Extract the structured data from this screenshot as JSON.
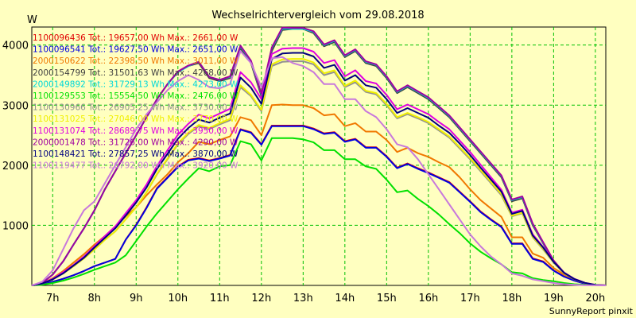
{
  "chart_data": {
    "type": "line",
    "title": "Wechselrichtervergleich vom 29.08.2018",
    "ylabel": "W",
    "xlabel": "",
    "footer": "SunnyReport pinxit",
    "ylim": [
      0,
      4300
    ],
    "xlim": [
      6.5,
      20.25
    ],
    "yticks": [
      1000,
      2000,
      3000,
      4000
    ],
    "xticks": [
      7,
      8,
      9,
      10,
      11,
      12,
      13,
      14,
      15,
      16,
      17,
      18,
      19,
      20
    ],
    "xtick_labels": [
      "7h",
      "8h",
      "9h",
      "10h",
      "11h",
      "12h",
      "13h",
      "14h",
      "15h",
      "16h",
      "17h",
      "18h",
      "19h",
      "20h"
    ],
    "grid": true,
    "legend_position": "top-left",
    "x": [
      6.5,
      6.75,
      7.0,
      7.25,
      7.5,
      7.75,
      8.0,
      8.25,
      8.5,
      8.75,
      9.0,
      9.25,
      9.5,
      9.75,
      10.0,
      10.25,
      10.5,
      10.75,
      11.0,
      11.25,
      11.5,
      11.75,
      12.0,
      12.25,
      12.5,
      12.75,
      13.0,
      13.25,
      13.5,
      13.75,
      14.0,
      14.25,
      14.5,
      14.75,
      15.0,
      15.25,
      15.5,
      15.75,
      16.0,
      16.25,
      16.5,
      16.75,
      17.0,
      17.25,
      17.5,
      17.75,
      18.0,
      18.25,
      18.5,
      18.75,
      19.0,
      19.25,
      19.5,
      19.75,
      20.0,
      20.25
    ],
    "series": [
      {
        "name": "1100096436 Tot.: 19657,00 Wh Max.: 2661,00 W",
        "color": "#e00000",
        "values": [
          0,
          20,
          60,
          110,
          170,
          240,
          320,
          380,
          440,
          760,
          1010,
          1300,
          1620,
          1800,
          1980,
          2090,
          2120,
          2080,
          2120,
          2170,
          2600,
          2550,
          2350,
          2660,
          2660,
          2660,
          2660,
          2610,
          2530,
          2550,
          2400,
          2440,
          2300,
          2300,
          2150,
          1960,
          2030,
          1950,
          1880,
          1800,
          1720,
          1560,
          1400,
          1230,
          1100,
          980,
          700,
          700,
          450,
          400,
          250,
          150,
          80,
          30,
          5,
          0
        ]
      },
      {
        "name": "1100096541 Tot.: 19627,50 Wh Max.: 2651,00 W",
        "color": "#0000e0",
        "values": [
          0,
          20,
          60,
          110,
          170,
          240,
          320,
          380,
          440,
          760,
          1000,
          1290,
          1610,
          1790,
          1970,
          2080,
          2110,
          2070,
          2110,
          2160,
          2590,
          2540,
          2340,
          2650,
          2650,
          2650,
          2650,
          2600,
          2520,
          2540,
          2390,
          2430,
          2290,
          2290,
          2140,
          1950,
          2020,
          1940,
          1870,
          1790,
          1710,
          1550,
          1390,
          1220,
          1090,
          970,
          690,
          690,
          440,
          390,
          245,
          145,
          78,
          28,
          5,
          0
        ]
      },
      {
        "name": "2000150622 Tot.: 22398,50 Wh Max.: 3011,00 W",
        "color": "#f07800",
        "values": [
          0,
          30,
          120,
          240,
          380,
          520,
          680,
          820,
          980,
          1150,
          1300,
          1500,
          1680,
          1850,
          2050,
          2200,
          2390,
          2350,
          2420,
          2480,
          2800,
          2750,
          2500,
          3000,
          3010,
          3000,
          3000,
          2950,
          2830,
          2850,
          2650,
          2700,
          2560,
          2560,
          2420,
          2220,
          2290,
          2200,
          2140,
          2050,
          1970,
          1800,
          1600,
          1420,
          1280,
          1140,
          800,
          800,
          530,
          460,
          290,
          180,
          100,
          40,
          8,
          0
        ]
      },
      {
        "name": "2000154799 Tot.: 31501,63 Wh Max.: 4268,00 W",
        "color": "#404040",
        "values": [
          0,
          40,
          180,
          400,
          680,
          950,
          1250,
          1600,
          1900,
          2200,
          2500,
          2800,
          3100,
          3350,
          3550,
          3650,
          3700,
          3450,
          3400,
          3450,
          3950,
          3700,
          3150,
          3900,
          4250,
          4268,
          4268,
          4200,
          3980,
          4050,
          3800,
          3900,
          3700,
          3650,
          3450,
          3200,
          3300,
          3200,
          3100,
          2950,
          2800,
          2600,
          2400,
          2200,
          2000,
          1800,
          1400,
          1450,
          1000,
          700,
          400,
          200,
          100,
          40,
          8,
          0
        ]
      },
      {
        "name": "2000149892 Tot.: 31729,13 Wh Max.: 4273,00 W",
        "color": "#00d8d8",
        "values": [
          0,
          40,
          180,
          400,
          680,
          950,
          1250,
          1600,
          1900,
          2200,
          2500,
          2800,
          3100,
          3350,
          3550,
          3650,
          3720,
          3470,
          3420,
          3470,
          3980,
          3730,
          3180,
          3950,
          4273,
          4270,
          4270,
          4220,
          4000,
          4070,
          3820,
          3920,
          3720,
          3670,
          3470,
          3220,
          3320,
          3220,
          3120,
          2970,
          2820,
          2620,
          2420,
          2220,
          2020,
          1820,
          1420,
          1470,
          1020,
          710,
          410,
          210,
          105,
          42,
          8,
          0
        ]
      },
      {
        "name": "1100129553 Tot.: 15554,50 Wh Max.: 2476,00 W",
        "color": "#00e000",
        "values": [
          0,
          10,
          40,
          80,
          130,
          190,
          260,
          320,
          380,
          500,
          740,
          980,
          1200,
          1400,
          1600,
          1780,
          1950,
          1900,
          1980,
          2000,
          2400,
          2350,
          2080,
          2450,
          2450,
          2450,
          2430,
          2380,
          2250,
          2250,
          2100,
          2100,
          1980,
          1940,
          1760,
          1550,
          1580,
          1440,
          1320,
          1180,
          1020,
          870,
          700,
          560,
          450,
          350,
          220,
          200,
          120,
          90,
          70,
          40,
          20,
          10,
          2,
          0
        ]
      },
      {
        "name": "1100130966 Tot.: 26905,25 Wh Max.: 3730,00 W",
        "color": "#909090",
        "values": [
          0,
          30,
          100,
          200,
          320,
          450,
          600,
          760,
          900,
          1100,
          1300,
          1550,
          1850,
          2100,
          2350,
          2520,
          2650,
          2600,
          2680,
          2750,
          3300,
          3150,
          2900,
          3650,
          3720,
          3730,
          3730,
          3680,
          3500,
          3550,
          3300,
          3380,
          3220,
          3180,
          3000,
          2780,
          2850,
          2780,
          2700,
          2580,
          2460,
          2280,
          2100,
          1900,
          1700,
          1500,
          1150,
          1200,
          800,
          600,
          380,
          200,
          100,
          40,
          8,
          0
        ]
      },
      {
        "name": "1100131025 Tot.: 27046,00 Wh Max.: 3770,00 W",
        "color": "#f0f000",
        "values": [
          0,
          30,
          100,
          200,
          320,
          450,
          600,
          760,
          900,
          1100,
          1300,
          1550,
          1860,
          2110,
          2360,
          2540,
          2670,
          2620,
          2700,
          2770,
          3330,
          3170,
          2920,
          3680,
          3760,
          3770,
          3770,
          3710,
          3530,
          3580,
          3320,
          3410,
          3240,
          3200,
          3020,
          2800,
          2870,
          2800,
          2720,
          2600,
          2480,
          2300,
          2120,
          1920,
          1720,
          1520,
          1160,
          1210,
          810,
          610,
          385,
          205,
          102,
          42,
          8,
          0
        ]
      },
      {
        "name": "1100131074 Tot.: 28689,75 Wh Max.: 3950,00 W",
        "color": "#e000e0",
        "values": [
          0,
          30,
          110,
          220,
          340,
          480,
          650,
          820,
          980,
          1200,
          1420,
          1680,
          1990,
          2250,
          2510,
          2690,
          2840,
          2780,
          2860,
          2940,
          3550,
          3380,
          3100,
          3850,
          3940,
          3950,
          3950,
          3890,
          3700,
          3750,
          3480,
          3580,
          3400,
          3360,
          3170,
          2930,
          3010,
          2930,
          2850,
          2720,
          2600,
          2410,
          2220,
          2010,
          1800,
          1590,
          1210,
          1260,
          850,
          640,
          400,
          215,
          108,
          44,
          8,
          0
        ]
      },
      {
        "name": "2000001478 Tot.: 31726,00 Wh Max.: 4290,00 W",
        "color": "#a000a0",
        "values": [
          0,
          40,
          180,
          400,
          680,
          950,
          1250,
          1600,
          1900,
          2200,
          2500,
          2800,
          3100,
          3350,
          3560,
          3660,
          3720,
          3470,
          3420,
          3480,
          3990,
          3740,
          3190,
          3960,
          4290,
          4285,
          4285,
          4230,
          4010,
          4080,
          3830,
          3930,
          3730,
          3680,
          3480,
          3230,
          3330,
          3230,
          3130,
          2980,
          2830,
          2630,
          2430,
          2230,
          2030,
          1830,
          1430,
          1480,
          1030,
          720,
          415,
          212,
          106,
          42,
          8,
          0
        ]
      },
      {
        "name": "1100148421 Tot.: 27857,25 Wh Max.: 3870,00 W",
        "color": "#000080",
        "values": [
          0,
          30,
          100,
          200,
          330,
          460,
          630,
          790,
          950,
          1160,
          1380,
          1630,
          1940,
          2190,
          2440,
          2620,
          2760,
          2710,
          2790,
          2860,
          3460,
          3290,
          3020,
          3770,
          3860,
          3870,
          3870,
          3810,
          3620,
          3670,
          3410,
          3500,
          3330,
          3290,
          3100,
          2870,
          2950,
          2870,
          2790,
          2660,
          2540,
          2360,
          2170,
          1960,
          1760,
          1560,
          1190,
          1240,
          830,
          630,
          390,
          210,
          105,
          43,
          8,
          0
        ]
      },
      {
        "name": "1100119477 Tot.: 26792,00 Wh Max.: 3920,00 W",
        "color": "#c878dc",
        "values": [
          0,
          60,
          250,
          600,
          950,
          1250,
          1400,
          1700,
          2000,
          2300,
          2600,
          2850,
          3050,
          3250,
          3400,
          3500,
          3420,
          3300,
          3280,
          3350,
          3900,
          3700,
          3300,
          3780,
          3800,
          3700,
          3650,
          3550,
          3350,
          3350,
          3100,
          3100,
          2900,
          2800,
          2600,
          2350,
          2300,
          2100,
          1850,
          1600,
          1350,
          1100,
          850,
          650,
          480,
          350,
          200,
          160,
          100,
          70,
          40,
          20,
          10,
          4,
          1,
          0
        ]
      }
    ]
  }
}
